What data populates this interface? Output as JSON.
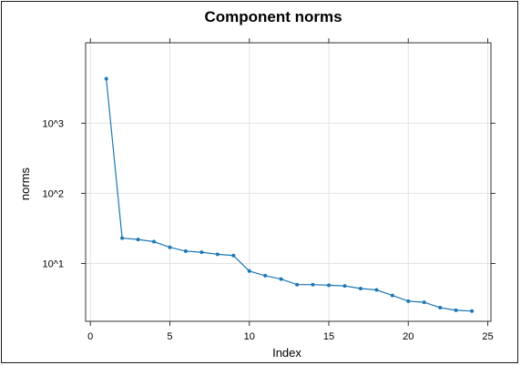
{
  "chart_data": {
    "type": "line",
    "title": "Component norms",
    "xlabel": "Index",
    "ylabel": "norms",
    "x_ticks": [
      0,
      5,
      10,
      15,
      20,
      25
    ],
    "x_tick_labels": [
      "0",
      "5",
      "10",
      "15",
      "20",
      "25"
    ],
    "y_ticks": [
      1000,
      100,
      10
    ],
    "y_tick_labels": [
      "10^3",
      "10^2",
      "10^1"
    ],
    "y_scale": "log",
    "xlim": [
      -0.3,
      25.2
    ],
    "ylim": [
      1.5,
      14000
    ],
    "grid": true,
    "series": [
      {
        "color": "#1f77b4",
        "x": [
          1,
          2,
          3,
          4,
          5,
          6,
          7,
          8,
          9,
          10,
          11,
          12,
          13,
          14,
          15,
          16,
          17,
          18,
          19,
          20,
          21,
          22,
          23,
          24
        ],
        "y": [
          4300,
          23,
          22,
          20.5,
          17,
          15,
          14.5,
          13.5,
          13,
          7.8,
          6.7,
          6,
          5,
          5,
          4.9,
          4.8,
          4.4,
          4.2,
          3.5,
          2.9,
          2.8,
          2.35,
          2.15,
          2.1
        ]
      }
    ]
  }
}
